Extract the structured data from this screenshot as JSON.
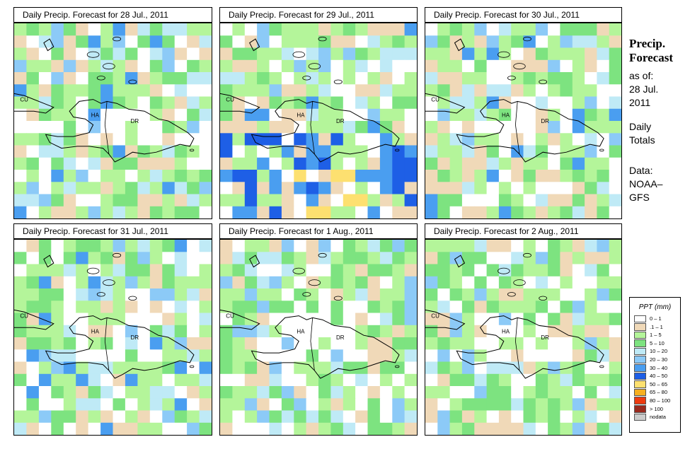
{
  "panels": [
    {
      "title": "Daily Precip. Forecast for  28 Jul., 2011",
      "intensity": 1,
      "seed": 11
    },
    {
      "title": "Daily Precip. Forecast for  29 Jul., 2011",
      "intensity": 3,
      "seed": 29
    },
    {
      "title": "Daily Precip. Forecast for  30 Jul., 2011",
      "intensity": 1,
      "seed": 37
    },
    {
      "title": "Daily Precip. Forecast for  31 Jul., 2011",
      "intensity": 1,
      "seed": 41
    },
    {
      "title": "Daily Precip. Forecast for  1 Aug., 2011",
      "intensity": 0,
      "seed": 53
    },
    {
      "title": "Daily Precip. Forecast for  2 Aug., 2011",
      "intensity": 0,
      "seed": 67
    }
  ],
  "map_labels": {
    "cuba": "CU",
    "haiti": "HA",
    "dominican_republic": "DR"
  },
  "side": {
    "title_line1": "Precip.",
    "title_line2": "Forecast",
    "asof_line1": "as of:",
    "asof_line2": "28 Jul.",
    "asof_line3": "2011",
    "totals_line1": "Daily",
    "totals_line2": "Totals",
    "data_line1": "Data:",
    "data_line2": "NOAA–",
    "data_line3": "GFS"
  },
  "legend": {
    "title": "PPT (mm)",
    "items": [
      {
        "label": "0 – 1",
        "color": "#ffffff"
      },
      {
        "label": ".1 – 1",
        "color": "#f0d9b8"
      },
      {
        "label": "1 – 5",
        "color": "#b4f59a"
      },
      {
        "label": "5 – 10",
        "color": "#7de380"
      },
      {
        "label": "10 – 20",
        "color": "#bfeaf6"
      },
      {
        "label": "20 – 30",
        "color": "#8ccaf7"
      },
      {
        "label": "30 – 40",
        "color": "#4a9ef0"
      },
      {
        "label": "40 – 50",
        "color": "#1e5fe6"
      },
      {
        "label": "50 – 65",
        "color": "#fde070"
      },
      {
        "label": "65 – 80",
        "color": "#f7b020"
      },
      {
        "label": "80 – 100",
        "color": "#ee3b10"
      },
      {
        "label": "> 100",
        "color": "#9a2a1e"
      },
      {
        "label": "nodata",
        "color": "#cccccc"
      }
    ]
  }
}
